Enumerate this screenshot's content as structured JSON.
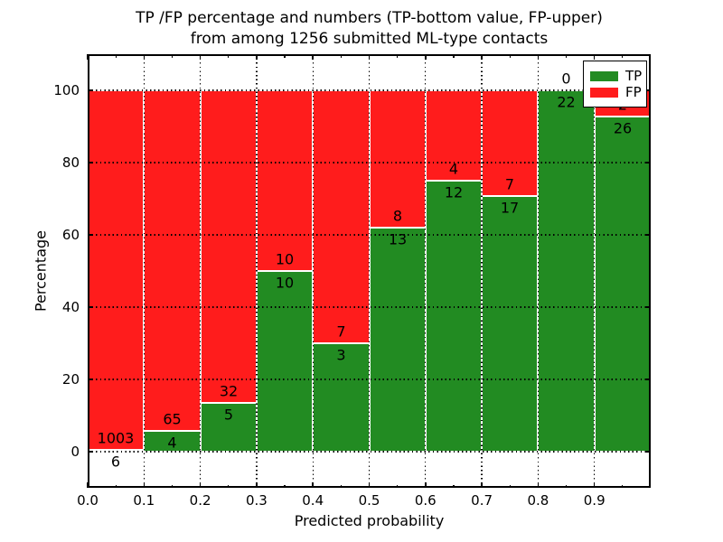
{
  "title": {
    "line1": "TP /FP percentage and numbers (TP-bottom value, FP-upper)",
    "line2": "from among 1256 submitted ML-type contacts"
  },
  "axes": {
    "xlabel": "Predicted probability",
    "ylabel": "Percentage",
    "xlim": [
      0.0,
      1.0
    ],
    "ylim": [
      -10,
      110
    ],
    "xticks": [
      {
        "value": 0.0,
        "label": "0.0"
      },
      {
        "value": 0.1,
        "label": "0.1"
      },
      {
        "value": 0.2,
        "label": "0.2"
      },
      {
        "value": 0.3,
        "label": "0.3"
      },
      {
        "value": 0.4,
        "label": "0.4"
      },
      {
        "value": 0.5,
        "label": "0.5"
      },
      {
        "value": 0.6,
        "label": "0.6"
      },
      {
        "value": 0.7,
        "label": "0.7"
      },
      {
        "value": 0.8,
        "label": "0.8"
      },
      {
        "value": 0.9,
        "label": "0.9"
      }
    ],
    "xminorticks": [
      0.05,
      0.15,
      0.25,
      0.35,
      0.45,
      0.55,
      0.65,
      0.75,
      0.85,
      0.95
    ],
    "yticks": [
      {
        "value": 0,
        "label": "0"
      },
      {
        "value": 20,
        "label": "20"
      },
      {
        "value": 40,
        "label": "40"
      },
      {
        "value": 60,
        "label": "60"
      },
      {
        "value": 80,
        "label": "80"
      },
      {
        "value": 100,
        "label": "100"
      }
    ],
    "grid": true,
    "grid_style": "dotted"
  },
  "legend": {
    "position": "upper right",
    "items": [
      {
        "label": "TP",
        "color": "#228B22"
      },
      {
        "label": "FP",
        "color": "#FF1C1C"
      }
    ]
  },
  "chart_data": {
    "type": "bar",
    "stacked": true,
    "normalized_to_percent": true,
    "title": "TP /FP percentage and numbers (TP-bottom value, FP-upper) from among 1256 submitted ML-type contacts",
    "xlabel": "Predicted probability",
    "ylabel": "Percentage",
    "bin_edges": [
      0.0,
      0.1,
      0.2,
      0.3,
      0.4,
      0.5,
      0.6,
      0.7,
      0.8,
      0.9,
      1.0
    ],
    "categories": [
      "0.0-0.1",
      "0.1-0.2",
      "0.2-0.3",
      "0.3-0.4",
      "0.4-0.5",
      "0.5-0.6",
      "0.6-0.7",
      "0.7-0.8",
      "0.8-0.9",
      "0.9-1.0"
    ],
    "series": [
      {
        "name": "TP",
        "color": "#228B22",
        "values": [
          6,
          4,
          5,
          10,
          3,
          13,
          12,
          17,
          22,
          26
        ]
      },
      {
        "name": "FP",
        "color": "#FF1C1C",
        "values": [
          1003,
          65,
          32,
          10,
          7,
          8,
          4,
          7,
          0,
          2
        ]
      }
    ],
    "tp_percent": [
      0.59,
      5.8,
      13.51,
      50.0,
      30.0,
      61.9,
      75.0,
      70.83,
      100.0,
      92.86
    ],
    "total_contacts": 1256
  },
  "colors": {
    "tp": "#228B22",
    "fp": "#FF1C1C",
    "grid": "#000000",
    "bar_edge": "#FFFFFF",
    "background": "#FFFFFF"
  }
}
